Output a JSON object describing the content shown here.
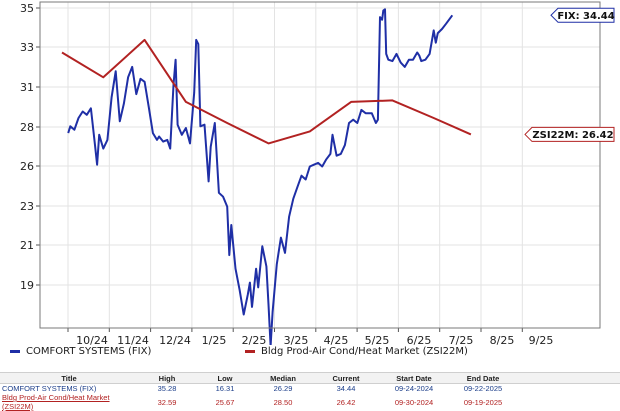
{
  "chart_data": {
    "type": "line",
    "x_ticks": [
      "10/24",
      "11/24",
      "12/24",
      "1/25",
      "2/25",
      "3/25",
      "4/25",
      "5/25",
      "6/25",
      "7/25",
      "8/25",
      "9/25"
    ],
    "y_ticks": [
      "35",
      "33",
      "31",
      "28",
      "26",
      "23",
      "21",
      "19"
    ],
    "ylim": [
      16,
      35
    ],
    "series": [
      {
        "name": "COMFORT SYSTEMS (FIX)",
        "color": "#1f2fa6",
        "callout": "FIX: 34.44",
        "points": [
          [
            0.15,
            26.5
          ],
          [
            0.2,
            26.9
          ],
          [
            0.3,
            26.7
          ],
          [
            0.4,
            27.4
          ],
          [
            0.5,
            27.8
          ],
          [
            0.6,
            27.6
          ],
          [
            0.7,
            28.0
          ],
          [
            0.8,
            25.8
          ],
          [
            0.85,
            24.7
          ],
          [
            0.9,
            26.4
          ],
          [
            1.0,
            25.6
          ],
          [
            1.1,
            26.1
          ],
          [
            1.2,
            28.7
          ],
          [
            1.3,
            30.4
          ],
          [
            1.4,
            27.2
          ],
          [
            1.5,
            28.3
          ],
          [
            1.6,
            30.0
          ],
          [
            1.7,
            30.7
          ],
          [
            1.8,
            28.9
          ],
          [
            1.9,
            29.9
          ],
          [
            2.0,
            29.7
          ],
          [
            2.1,
            28.1
          ],
          [
            2.2,
            26.5
          ],
          [
            2.3,
            26.1
          ],
          [
            2.35,
            26.3
          ],
          [
            2.45,
            26.0
          ],
          [
            2.55,
            26.1
          ],
          [
            2.62,
            25.6
          ],
          [
            2.7,
            29.5
          ],
          [
            2.75,
            31.2
          ],
          [
            2.8,
            27.0
          ],
          [
            2.9,
            26.4
          ],
          [
            3.0,
            26.8
          ],
          [
            3.1,
            25.9
          ],
          [
            3.2,
            29.0
          ],
          [
            3.25,
            32.6
          ],
          [
            3.3,
            32.3
          ],
          [
            3.35,
            26.9
          ],
          [
            3.45,
            27.0
          ],
          [
            3.55,
            23.8
          ],
          [
            3.6,
            25.7
          ],
          [
            3.7,
            27.1
          ],
          [
            3.8,
            23.2
          ],
          [
            3.9,
            23.0
          ],
          [
            4.0,
            22.5
          ],
          [
            4.05,
            20.2
          ],
          [
            4.1,
            21.6
          ],
          [
            4.2,
            19.6
          ],
          [
            4.3,
            18.7
          ],
          [
            4.4,
            17.7
          ],
          [
            4.5,
            18.5
          ],
          [
            4.55,
            19.0
          ],
          [
            4.6,
            18.0
          ],
          [
            4.7,
            19.6
          ],
          [
            4.75,
            18.8
          ],
          [
            4.85,
            20.6
          ],
          [
            4.95,
            19.7
          ],
          [
            5.0,
            18.1
          ],
          [
            5.05,
            16.5
          ],
          [
            5.1,
            17.8
          ],
          [
            5.2,
            19.8
          ],
          [
            5.3,
            21.0
          ],
          [
            5.4,
            20.3
          ],
          [
            5.5,
            22.0
          ],
          [
            5.6,
            22.9
          ],
          [
            5.7,
            23.5
          ],
          [
            5.8,
            24.1
          ],
          [
            5.9,
            23.9
          ],
          [
            6.0,
            24.6
          ],
          [
            6.1,
            24.7
          ],
          [
            6.2,
            24.8
          ],
          [
            6.3,
            24.6
          ],
          [
            6.4,
            25.0
          ],
          [
            6.5,
            25.3
          ],
          [
            6.55,
            26.4
          ],
          [
            6.65,
            25.2
          ],
          [
            6.75,
            25.3
          ],
          [
            6.85,
            25.8
          ],
          [
            6.95,
            27.1
          ],
          [
            7.05,
            27.3
          ],
          [
            7.15,
            27.1
          ],
          [
            7.25,
            27.9
          ],
          [
            7.35,
            27.7
          ],
          [
            7.5,
            27.7
          ],
          [
            7.6,
            27.1
          ],
          [
            7.65,
            27.3
          ],
          [
            7.7,
            34.3
          ],
          [
            7.75,
            34.1
          ],
          [
            7.78,
            34.8
          ],
          [
            7.82,
            34.9
          ],
          [
            7.85,
            31.6
          ],
          [
            7.9,
            31.2
          ],
          [
            8.0,
            31.1
          ],
          [
            8.1,
            31.6
          ],
          [
            8.2,
            31.0
          ],
          [
            8.3,
            30.7
          ],
          [
            8.4,
            31.2
          ],
          [
            8.5,
            31.2
          ],
          [
            8.6,
            31.7
          ],
          [
            8.65,
            31.5
          ],
          [
            8.7,
            31.1
          ],
          [
            8.8,
            31.2
          ],
          [
            8.9,
            31.6
          ],
          [
            9.0,
            33.3
          ],
          [
            9.05,
            32.4
          ],
          [
            9.1,
            33.1
          ],
          [
            9.2,
            33.4
          ],
          [
            9.3,
            33.8
          ],
          [
            9.45,
            34.44
          ]
        ]
      },
      {
        "name": "Bldg Prod-Air Cond/Heat Market (ZSI22M)",
        "color": "#b22222",
        "callout": "ZSI22M: 26.42",
        "points": [
          [
            0.0,
            31.7
          ],
          [
            1.0,
            30.0
          ],
          [
            2.0,
            32.6
          ],
          [
            3.0,
            28.4
          ],
          [
            4.0,
            27.1
          ],
          [
            5.0,
            25.9
          ],
          [
            6.0,
            26.6
          ],
          [
            7.0,
            28.4
          ],
          [
            8.0,
            28.5
          ],
          [
            9.0,
            27.4
          ],
          [
            9.9,
            26.42
          ]
        ]
      }
    ],
    "table": {
      "headers": [
        "Title",
        "High",
        "Low",
        "Median",
        "Current",
        "Start Date",
        "End Date"
      ],
      "rows": [
        [
          "COMFORT SYSTEMS (FIX)",
          "35.28",
          "16.31",
          "26.29",
          "34.44",
          "09-24-2024",
          "09-22-2025"
        ],
        [
          "Bldg Prod-Air Cond/Heat Market (ZSI22M)",
          "32.59",
          "25.67",
          "28.50",
          "26.42",
          "09-30-2024",
          "09-19-2025"
        ]
      ]
    }
  }
}
